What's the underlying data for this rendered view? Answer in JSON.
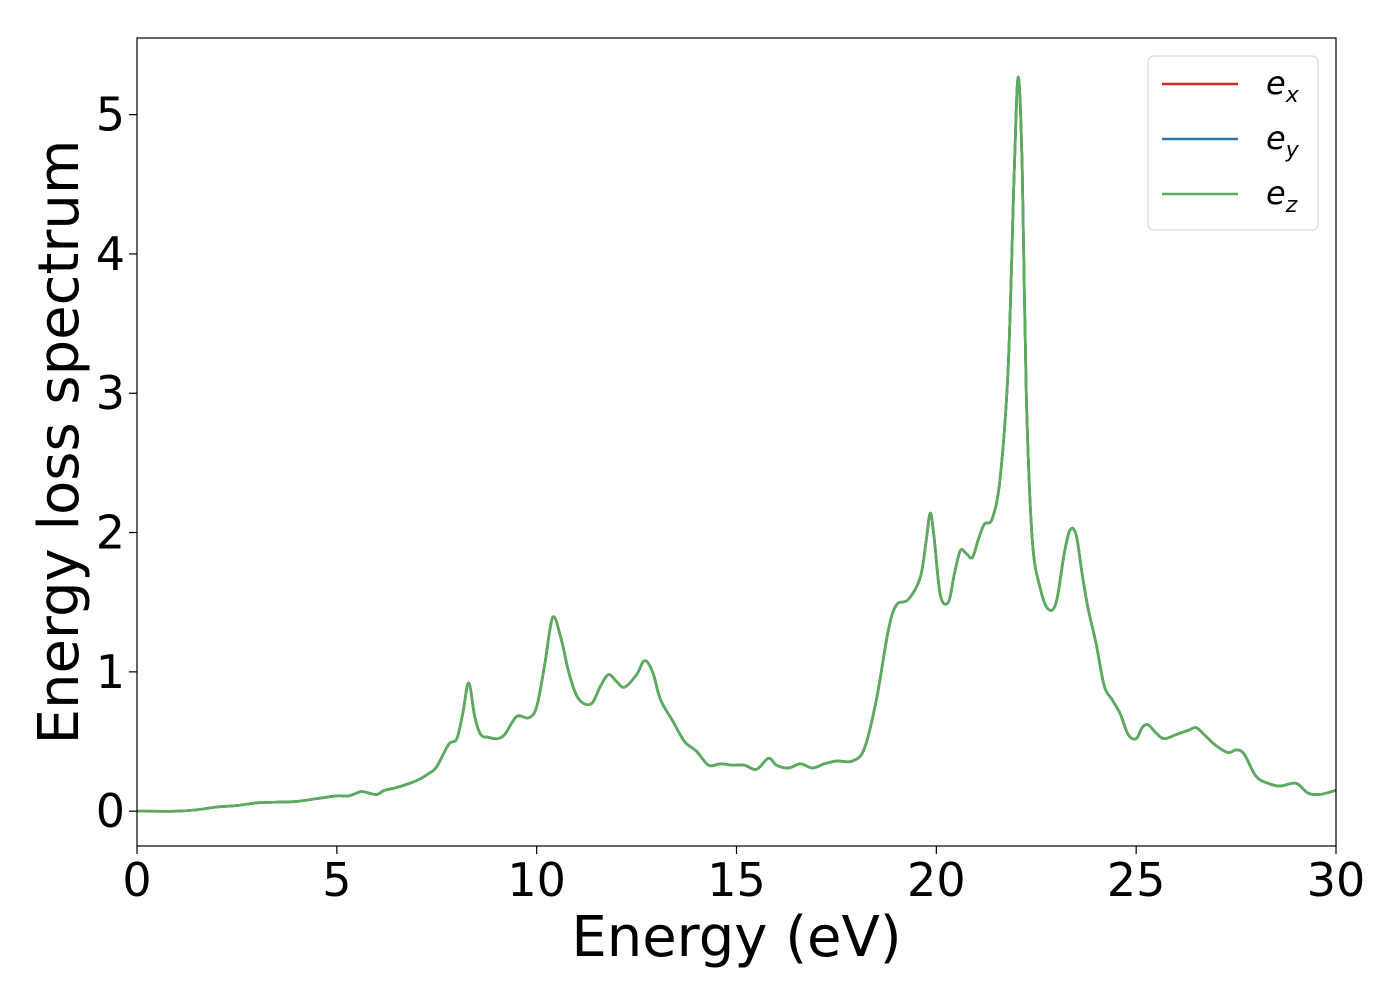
{
  "chart_data": {
    "type": "line",
    "xlabel": "Energy (eV)",
    "ylabel": "Energy loss spectrum",
    "xlim": [
      0,
      30
    ],
    "ylim": [
      -0.25,
      5.55
    ],
    "xticks": [
      0,
      5,
      10,
      15,
      20,
      25,
      30
    ],
    "yticks": [
      0,
      1,
      2,
      3,
      4,
      5
    ],
    "grid": false,
    "legend_position": "top-right",
    "series": [
      {
        "name": "e",
        "subscript": "x",
        "color": "#d62728"
      },
      {
        "name": "e",
        "subscript": "y",
        "color": "#1f77b4"
      },
      {
        "name": "e",
        "subscript": "z",
        "color": "#5aad5a"
      }
    ],
    "x": [
      0,
      1,
      1.5,
      2,
      2.5,
      3,
      3.5,
      4,
      4.5,
      5,
      5.3,
      5.6,
      5.8,
      6,
      6.2,
      6.5,
      7,
      7.3,
      7.5,
      7.8,
      8,
      8.15,
      8.3,
      8.45,
      8.6,
      8.8,
      9,
      9.2,
      9.5,
      9.8,
      10,
      10.2,
      10.4,
      10.6,
      10.8,
      11,
      11.2,
      11.4,
      11.6,
      11.8,
      12,
      12.2,
      12.5,
      12.7,
      12.9,
      13.1,
      13.4,
      13.7,
      14,
      14.3,
      14.6,
      14.9,
      15.2,
      15.5,
      15.8,
      16,
      16.3,
      16.6,
      16.9,
      17.2,
      17.5,
      17.9,
      18.2,
      18.5,
      18.8,
      19,
      19.3,
      19.6,
      19.75,
      19.85,
      19.95,
      20.1,
      20.3,
      20.45,
      20.6,
      20.75,
      20.9,
      21.05,
      21.2,
      21.4,
      21.6,
      21.8,
      21.95,
      22.05,
      22.15,
      22.25,
      22.4,
      22.6,
      22.8,
      23,
      23.2,
      23.35,
      23.5,
      23.65,
      23.8,
      24,
      24.2,
      24.4,
      24.6,
      24.8,
      25,
      25.15,
      25.3,
      25.5,
      25.7,
      26,
      26.3,
      26.5,
      26.7,
      27,
      27.3,
      27.5,
      27.7,
      28,
      28.3,
      28.6,
      29,
      29.3,
      29.6,
      30
    ],
    "y": [
      0,
      0,
      0.01,
      0.03,
      0.04,
      0.06,
      0.065,
      0.07,
      0.09,
      0.11,
      0.11,
      0.14,
      0.13,
      0.12,
      0.15,
      0.17,
      0.22,
      0.27,
      0.32,
      0.48,
      0.52,
      0.7,
      0.92,
      0.68,
      0.55,
      0.53,
      0.52,
      0.55,
      0.68,
      0.67,
      0.75,
      1.05,
      1.39,
      1.25,
      1.0,
      0.83,
      0.77,
      0.78,
      0.9,
      0.98,
      0.93,
      0.89,
      0.98,
      1.08,
      1.0,
      0.8,
      0.65,
      0.5,
      0.43,
      0.33,
      0.34,
      0.33,
      0.33,
      0.3,
      0.38,
      0.33,
      0.31,
      0.34,
      0.31,
      0.34,
      0.36,
      0.36,
      0.45,
      0.8,
      1.3,
      1.48,
      1.52,
      1.68,
      1.95,
      2.14,
      1.95,
      1.55,
      1.5,
      1.7,
      1.87,
      1.85,
      1.82,
      1.95,
      2.06,
      2.1,
      2.4,
      3.2,
      4.6,
      5.27,
      4.6,
      3.0,
      1.95,
      1.6,
      1.45,
      1.5,
      1.85,
      2.02,
      1.98,
      1.7,
      1.45,
      1.2,
      0.9,
      0.8,
      0.7,
      0.55,
      0.52,
      0.6,
      0.62,
      0.56,
      0.52,
      0.55,
      0.58,
      0.6,
      0.55,
      0.47,
      0.42,
      0.44,
      0.41,
      0.25,
      0.2,
      0.18,
      0.2,
      0.13,
      0.12,
      0.15
    ]
  }
}
